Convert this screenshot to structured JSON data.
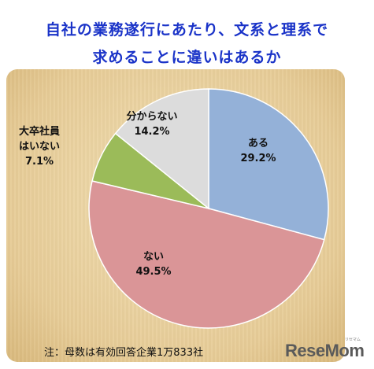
{
  "title_line1": "自社の業務遂行にあたり、文系と理系で",
  "title_line2": "求めることに違いはあるか",
  "note": "注：母数は有効回答企業1万833社",
  "logo": "ReseMom",
  "logo_sub": "リセマム",
  "chart_data": {
    "type": "pie",
    "start_angle_deg": 0,
    "direction": "clockwise",
    "slices": [
      {
        "label": "ある",
        "value": 29.2,
        "value_text": "29.2%",
        "color": "#94b1d8"
      },
      {
        "label": "ない",
        "value": 49.5,
        "value_text": "49.5%",
        "color": "#da9597"
      },
      {
        "label": "大卒社員はいない",
        "label_lines": [
          "大卒社員",
          "はいない"
        ],
        "value": 7.1,
        "value_text": "7.1%",
        "color": "#9bbb59"
      },
      {
        "label": "分からない",
        "value": 14.2,
        "value_text": "14.2%",
        "color": "#dcdcdc"
      }
    ]
  }
}
